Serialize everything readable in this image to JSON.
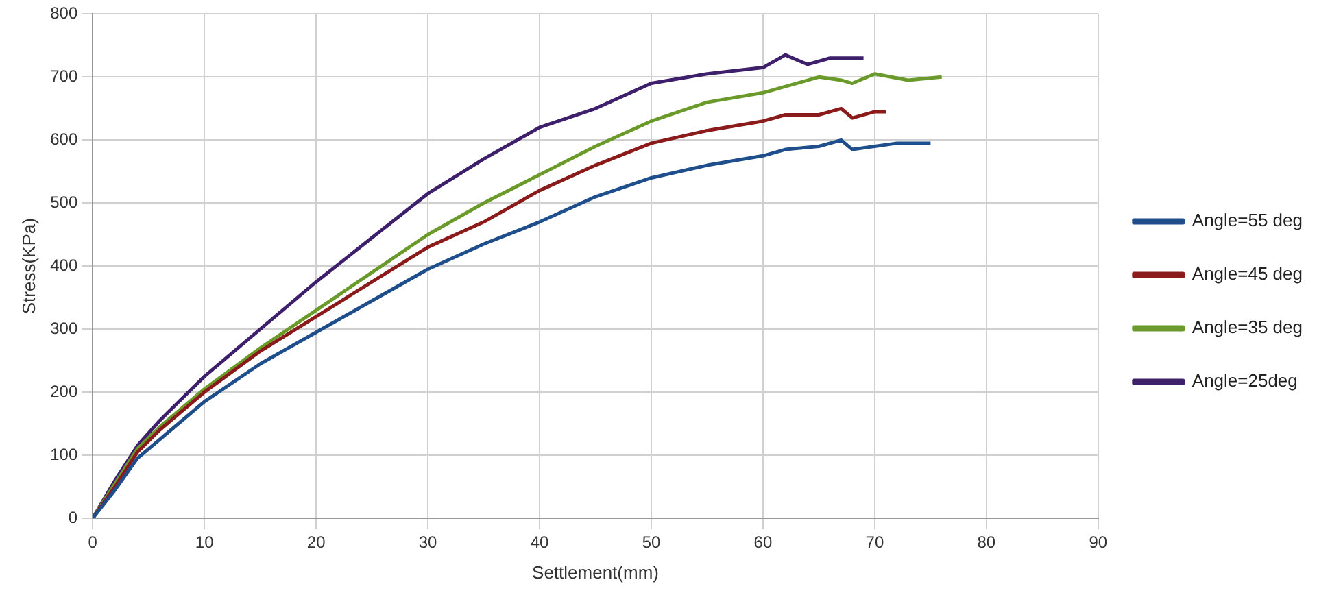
{
  "chart_data": {
    "type": "line",
    "xlabel": "Settlement(mm)",
    "ylabel": "Stress(KPa)",
    "xlim": [
      0,
      90
    ],
    "xticks": [
      0,
      10,
      20,
      30,
      40,
      50,
      60,
      70,
      80,
      90
    ],
    "ylim": [
      0,
      800
    ],
    "yticks": [
      0,
      100,
      200,
      300,
      400,
      500,
      600,
      700,
      800
    ],
    "grid": true,
    "legend": "right",
    "marker": "none",
    "line_style": "solid",
    "series": [
      {
        "name": "Angle=55 deg",
        "color": "#1f4e8c",
        "x": [
          0,
          2,
          4,
          6,
          8,
          10,
          15,
          20,
          25,
          30,
          35,
          40,
          45,
          50,
          55,
          60,
          62,
          65,
          67,
          68,
          70,
          72,
          75
        ],
        "values": [
          0,
          45,
          95,
          125,
          155,
          185,
          245,
          295,
          345,
          395,
          435,
          470,
          510,
          540,
          560,
          575,
          585,
          590,
          600,
          585,
          590,
          595,
          595
        ]
      },
      {
        "name": "Angle=45 deg",
        "color": "#8b1a1a",
        "x": [
          0,
          2,
          4,
          6,
          8,
          10,
          15,
          20,
          25,
          30,
          35,
          40,
          45,
          50,
          55,
          60,
          62,
          65,
          67,
          68,
          70,
          71
        ],
        "values": [
          0,
          50,
          105,
          140,
          170,
          200,
          265,
          320,
          375,
          430,
          470,
          520,
          560,
          595,
          615,
          630,
          640,
          640,
          650,
          635,
          645,
          645
        ]
      },
      {
        "name": "Angle=35 deg",
        "color": "#6a9a2a",
        "x": [
          0,
          2,
          4,
          6,
          8,
          10,
          15,
          20,
          25,
          30,
          35,
          40,
          45,
          50,
          55,
          60,
          63,
          65,
          67,
          68,
          70,
          73,
          76
        ],
        "values": [
          0,
          55,
          110,
          145,
          175,
          205,
          270,
          330,
          390,
          450,
          500,
          545,
          590,
          630,
          660,
          675,
          690,
          700,
          695,
          690,
          705,
          695,
          700
        ]
      },
      {
        "name": "Angle=25deg",
        "color": "#3d1f6b",
        "x": [
          0,
          2,
          4,
          6,
          8,
          10,
          15,
          20,
          25,
          30,
          35,
          40,
          45,
          50,
          55,
          60,
          62,
          64,
          66,
          69
        ],
        "values": [
          0,
          60,
          115,
          155,
          190,
          225,
          300,
          375,
          445,
          515,
          570,
          620,
          650,
          690,
          705,
          715,
          735,
          720,
          730,
          730
        ]
      }
    ]
  }
}
